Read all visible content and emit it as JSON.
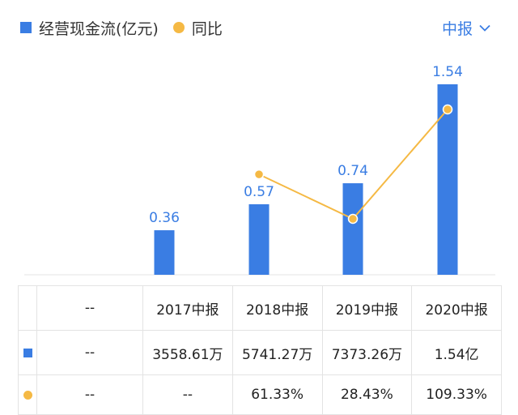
{
  "legend": {
    "bar_label": "经营现金流(亿元)",
    "line_label": "同比"
  },
  "period_select": {
    "value": "中报",
    "icon": "chevron-down-icon"
  },
  "colors": {
    "bar": "#3a7de3",
    "line": "#f5b944",
    "negative_text": "#e5484d"
  },
  "chart_data": {
    "type": "bar",
    "categories": [
      "2017中报",
      "2018中报",
      "2019中报",
      "2020中报"
    ],
    "series": [
      {
        "name": "经营现金流(亿元)",
        "type": "bar",
        "values": [
          0.36,
          0.57,
          0.74,
          1.54
        ],
        "labels": [
          "0.36",
          "0.57",
          "0.74",
          "1.54"
        ]
      },
      {
        "name": "同比",
        "type": "line",
        "values": [
          null,
          61.33,
          28.43,
          109.33
        ]
      }
    ]
  },
  "table": {
    "header": [
      "--",
      "2017中报",
      "2018中报",
      "2019中报",
      "2020中报"
    ],
    "cashflow_row": [
      "--",
      "3558.61万",
      "5741.27万",
      "7373.26万",
      "1.54亿"
    ],
    "yoy_row": [
      "--",
      "--",
      "61.33%",
      "28.43%",
      "109.33%"
    ]
  }
}
